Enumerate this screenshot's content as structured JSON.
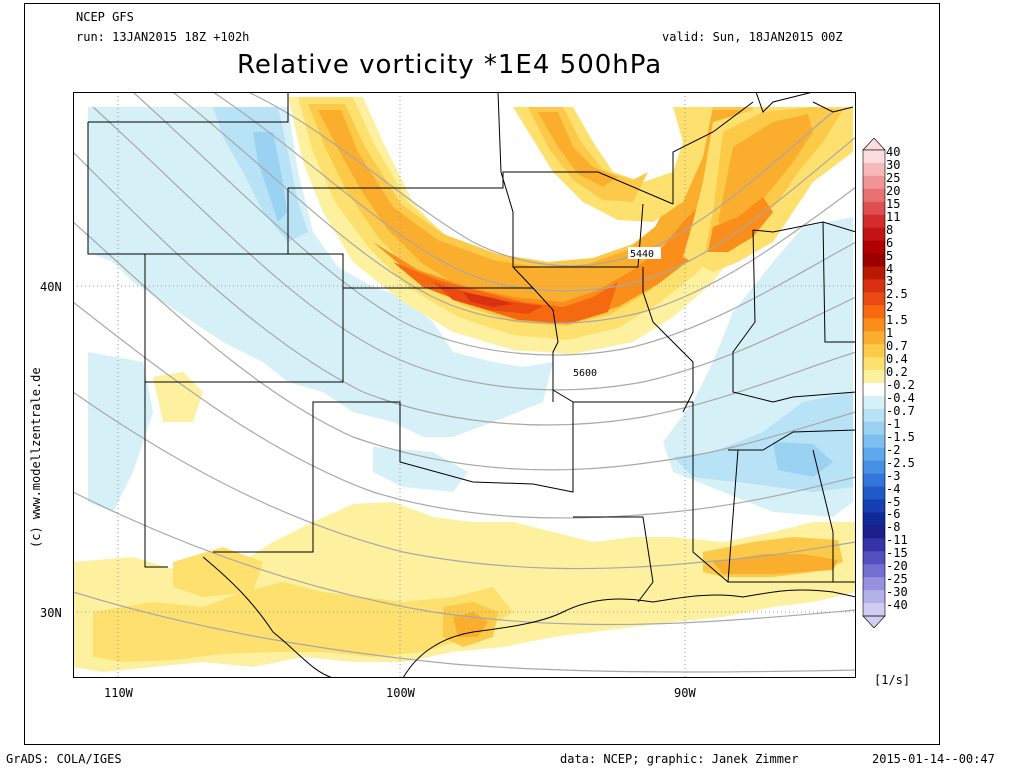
{
  "header": {
    "model": "NCEP GFS",
    "run": "run: 13JAN2015 18Z +102h",
    "valid": "valid: Sun, 18JAN2015 00Z",
    "title": "Relative vorticity *1E4 500hPa"
  },
  "map": {
    "lat_labels": [
      "40N",
      "30N"
    ],
    "lon_labels": [
      "110W",
      "100W",
      "90W"
    ],
    "contour_labels": [
      "5440",
      "5600"
    ]
  },
  "colorbar": {
    "unit": "[1/s]",
    "levels": [
      "40",
      "30",
      "25",
      "20",
      "15",
      "11",
      "8",
      "6",
      "5",
      "4",
      "3",
      "2.5",
      "2",
      "1.5",
      "1",
      "0.7",
      "0.4",
      "0.2",
      "-0.2",
      "-0.4",
      "-0.7",
      "-1",
      "-1.5",
      "-2",
      "-2.5",
      "-3",
      "-4",
      "-5",
      "-6",
      "-8",
      "-11",
      "-15",
      "-20",
      "-25",
      "-30",
      "-40"
    ],
    "colors": [
      "#fcdcdc",
      "#f7b8b8",
      "#f09595",
      "#e87272",
      "#de4f4f",
      "#d22c2c",
      "#c31414",
      "#b00000",
      "#9a0000",
      "#b81a00",
      "#d83010",
      "#ea4a10",
      "#f56a10",
      "#fb8e1a",
      "#fbae2d",
      "#fcc948",
      "#fde06d",
      "#fdf09f",
      "#ffffff",
      "#d6f0f8",
      "#b8e2f5",
      "#9ad2f2",
      "#7cbff0",
      "#5ea9ec",
      "#4790e6",
      "#3276dc",
      "#2259c9",
      "#163fb2",
      "#0f2a97",
      "#1d1e8a",
      "#3433a8",
      "#5450c0",
      "#7470d2",
      "#9591e0",
      "#b3b0ea",
      "#cfcdf2"
    ]
  },
  "footer": {
    "left": "GrADS: COLA/IGES",
    "credit": "data: NCEP; graphic: Janek Zimmer",
    "timestamp": "2015-01-14--00:47"
  },
  "watermark": "(c) www.modellzentrale.de"
}
